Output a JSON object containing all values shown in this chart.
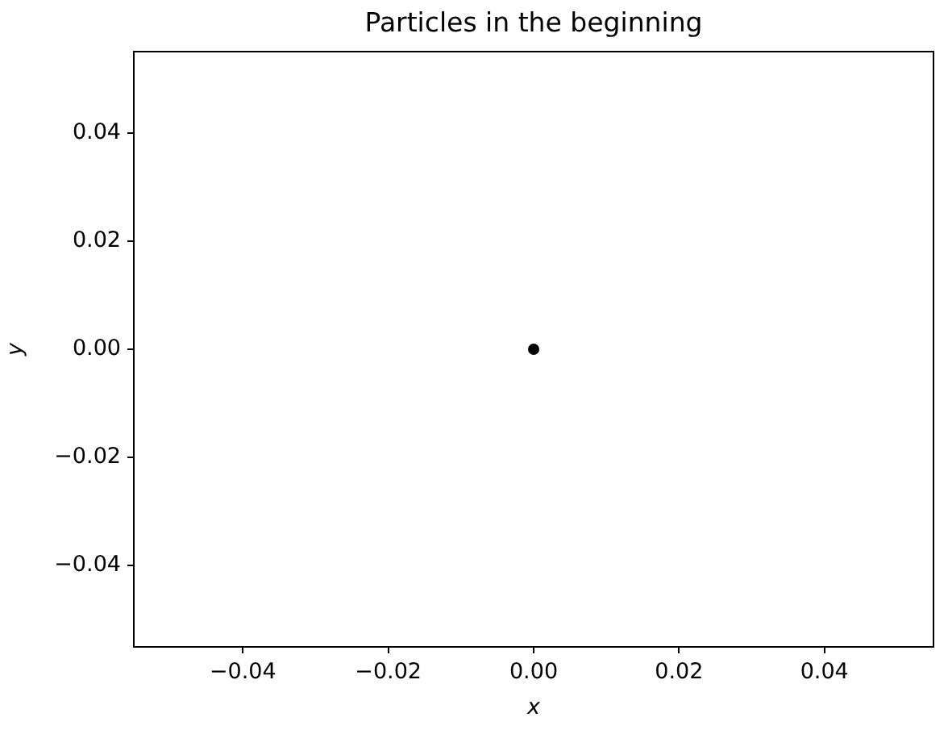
{
  "chart_data": {
    "type": "scatter",
    "title": "Particles in the beginning",
    "xlabel": "x",
    "ylabel": "y",
    "x": [
      0
    ],
    "values": [
      0
    ],
    "color": "#000000",
    "marker": "circle",
    "xlim": [
      -0.055,
      0.055
    ],
    "ylim": [
      -0.055,
      0.055
    ],
    "xticks": [
      {
        "value": -0.04,
        "label": "−0.04"
      },
      {
        "value": -0.02,
        "label": "−0.02"
      },
      {
        "value": 0,
        "label": "0.00"
      },
      {
        "value": 0.02,
        "label": "0.02"
      },
      {
        "value": 0.04,
        "label": "0.04"
      }
    ],
    "yticks": [
      {
        "value": -0.04,
        "label": "−0.04"
      },
      {
        "value": -0.02,
        "label": "−0.02"
      },
      {
        "value": 0,
        "label": "0.00"
      },
      {
        "value": 0.02,
        "label": "0.02"
      },
      {
        "value": 0.04,
        "label": "0.04"
      }
    ],
    "grid": false
  }
}
